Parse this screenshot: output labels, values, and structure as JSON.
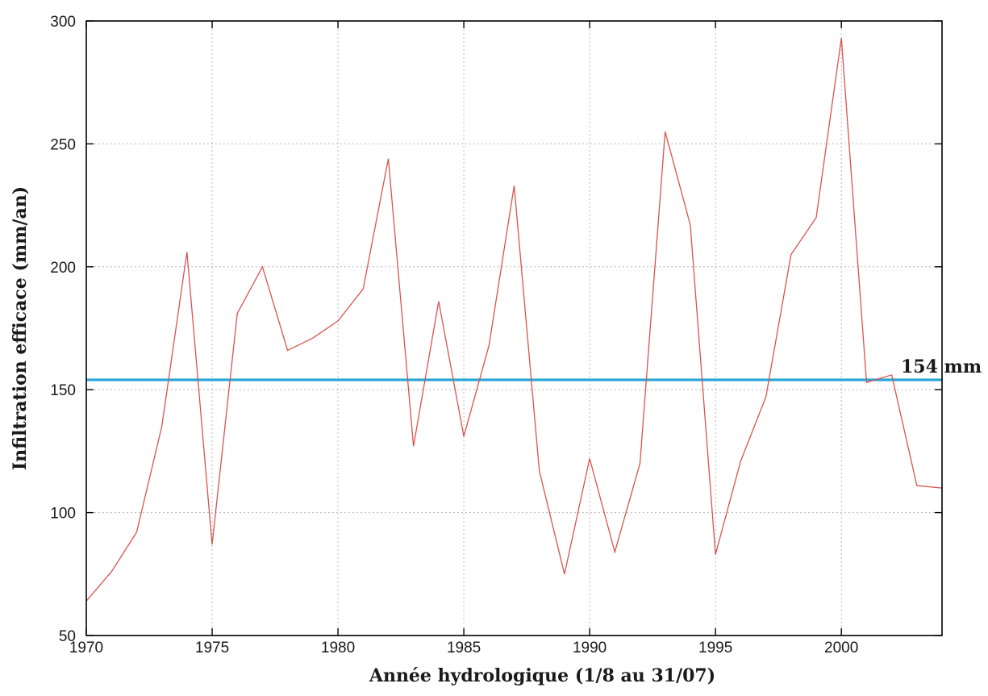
{
  "chart_data": {
    "type": "line",
    "xlabel": "Année hydrologique (1/8 au 31/07)",
    "ylabel": "Infiltration efficace (mm/an)",
    "xlim": [
      1970,
      2004
    ],
    "ylim": [
      50,
      300
    ],
    "x_ticks": [
      1970,
      1975,
      1980,
      1985,
      1990,
      1995,
      2000
    ],
    "y_ticks": [
      50,
      100,
      150,
      200,
      250,
      300
    ],
    "grid": true,
    "series": [
      {
        "color": "#d9534f",
        "x": [
          1970,
          1971,
          1972,
          1973,
          1974,
          1975,
          1976,
          1977,
          1978,
          1979,
          1980,
          1981,
          1982,
          1983,
          1984,
          1985,
          1986,
          1987,
          1988,
          1989,
          1990,
          1991,
          1992,
          1993,
          1994,
          1995,
          1996,
          1997,
          1998,
          1999,
          2000,
          2001,
          2002,
          2003,
          2004
        ],
        "values": [
          64,
          76,
          92,
          135,
          206,
          87,
          181,
          200,
          166,
          171,
          178,
          191,
          244,
          127,
          186,
          131,
          168,
          233,
          117,
          75,
          122,
          84,
          120,
          255,
          217,
          83,
          121,
          147,
          205,
          220,
          293,
          153,
          156,
          111,
          110
        ]
      }
    ],
    "reference_line": {
      "value": 154,
      "label": "154 mm",
      "color": "#2aa6d8"
    }
  }
}
